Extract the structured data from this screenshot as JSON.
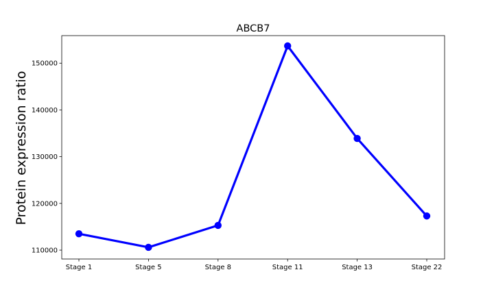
{
  "chart_data": {
    "type": "line",
    "title": "ABCB7",
    "xlabel": "",
    "ylabel": "Protein expression ratio",
    "categories": [
      "Stage 1",
      "Stage 5",
      "Stage 8",
      "Stage 11",
      "Stage 13",
      "Stage 22"
    ],
    "series": [
      {
        "values": [
          113500,
          110600,
          115300,
          153700,
          133900,
          117300
        ],
        "color": "#0000ff"
      }
    ],
    "ylim": [
      108100,
      155900
    ],
    "yticks": [
      110000,
      120000,
      130000,
      140000,
      150000
    ],
    "ytick_labels": [
      "110000",
      "120000",
      "130000",
      "140000",
      "150000"
    ],
    "grid": false,
    "legend": "none"
  }
}
